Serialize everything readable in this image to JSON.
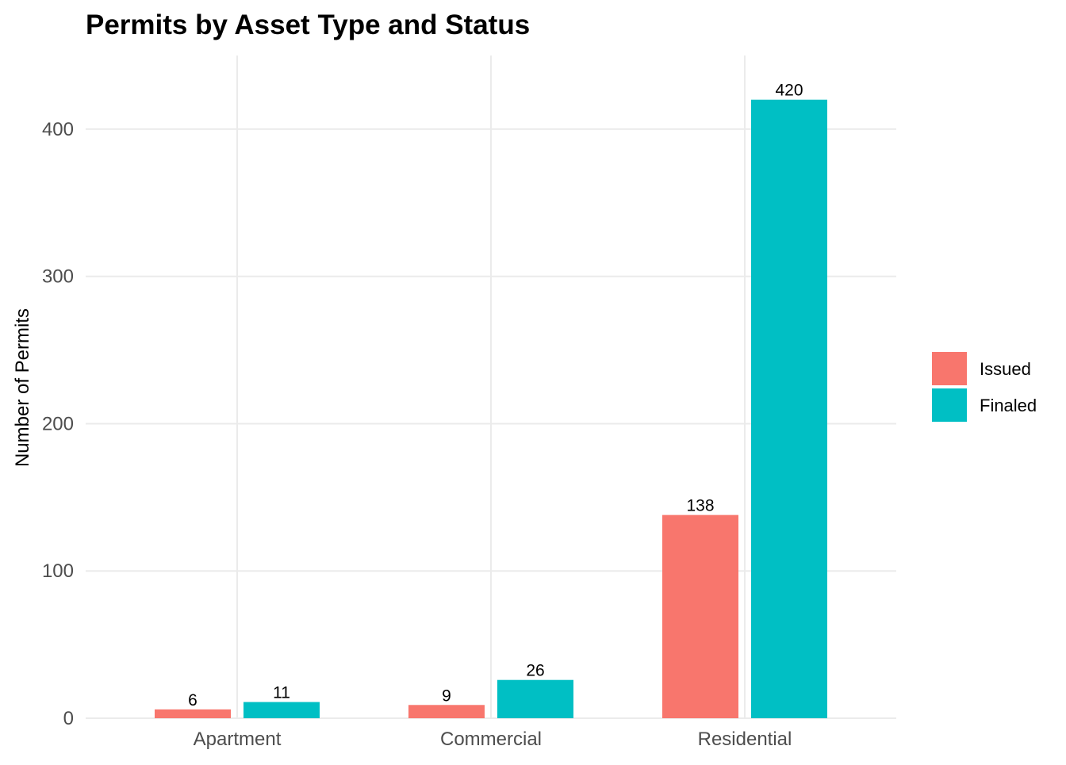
{
  "chart_data": {
    "type": "bar",
    "title": "Permits by Asset Type and Status",
    "xlabel": "",
    "ylabel": "Number of Permits",
    "categories": [
      "Apartment",
      "Commercial",
      "Residential"
    ],
    "series": [
      {
        "name": "Issued",
        "values": [
          6,
          9,
          138
        ],
        "color": "#F8766D"
      },
      {
        "name": "Finaled",
        "values": [
          11,
          26,
          420
        ],
        "color": "#00BFC4"
      }
    ],
    "ylim": [
      0,
      450
    ],
    "yticks": [
      0,
      100,
      200,
      300,
      400
    ],
    "grid": true,
    "legend_position": "right",
    "data_labels": true
  }
}
